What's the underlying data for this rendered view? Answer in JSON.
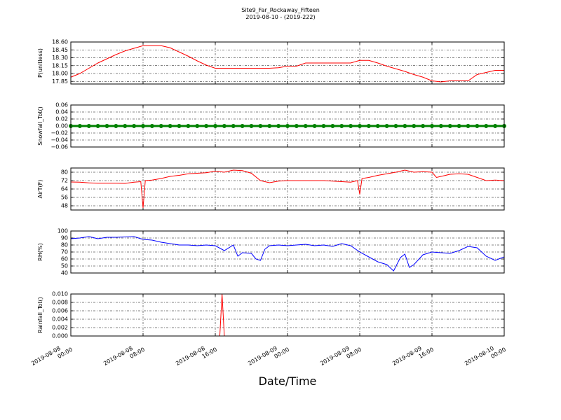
{
  "chart_data": [
    {
      "type": "line",
      "title": "Site9_Far_Rockaway_Fifteen",
      "subtitle": "2019-08-10 - (2019-222)",
      "ylabel": "P(unitless)",
      "ylim": [
        17.8,
        18.6
      ],
      "yticks": [
        17.85,
        {
          "value": 18.0,
          "label": "18.00"
        },
        18.15,
        {
          "value": 18.3,
          "label": "18.30"
        },
        18.45,
        {
          "value": 18.6,
          "label": "18.60"
        }
      ],
      "xlim": [
        "2019-08-08 00:00",
        "2019-08-10 00:00"
      ],
      "xticks": [
        "2019-08-08 00:00",
        "2019-08-08 08:00",
        "2019-08-08 16:00",
        "2019-08-09 00:00",
        "2019-08-09 08:00",
        "2019-08-09 16:00",
        "2019-08-10 00:00"
      ],
      "grid": true,
      "x": [
        "2019-08-08 00:00",
        "2019-08-08 01:00",
        "2019-08-08 02:00",
        "2019-08-08 03:00",
        "2019-08-08 04:00",
        "2019-08-08 05:00",
        "2019-08-08 06:00",
        "2019-08-08 07:00",
        "2019-08-08 08:00",
        "2019-08-08 09:00",
        "2019-08-08 10:00",
        "2019-08-08 11:00",
        "2019-08-08 12:00",
        "2019-08-08 13:00",
        "2019-08-08 14:00",
        "2019-08-08 15:00",
        "2019-08-08 16:00",
        "2019-08-08 17:00",
        "2019-08-08 18:00",
        "2019-08-08 19:00",
        "2019-08-08 20:00",
        "2019-08-08 21:00",
        "2019-08-08 22:00",
        "2019-08-08 23:00",
        "2019-08-09 00:00",
        "2019-08-09 01:00",
        "2019-08-09 02:00",
        "2019-08-09 03:00",
        "2019-08-09 04:00",
        "2019-08-09 05:00",
        "2019-08-09 06:00",
        "2019-08-09 07:00",
        "2019-08-09 08:00",
        "2019-08-09 09:00",
        "2019-08-09 10:00",
        "2019-08-09 11:00",
        "2019-08-09 12:00",
        "2019-08-09 13:00",
        "2019-08-09 14:00",
        "2019-08-09 15:00",
        "2019-08-09 16:00",
        "2019-08-09 17:00",
        "2019-08-09 18:00",
        "2019-08-09 19:00",
        "2019-08-09 20:00",
        "2019-08-09 21:00",
        "2019-08-09 22:00",
        "2019-08-09 23:00",
        "2019-08-10 00:00"
      ],
      "series": [
        {
          "color": "#ff0000",
          "values": [
            17.93,
            18.0,
            18.1,
            18.2,
            18.28,
            18.36,
            18.43,
            18.48,
            18.53,
            18.53,
            18.53,
            18.49,
            18.41,
            18.33,
            18.24,
            18.16,
            18.1,
            18.1,
            18.1,
            18.1,
            18.1,
            18.1,
            18.1,
            18.11,
            18.14,
            18.14,
            18.2,
            18.2,
            18.2,
            18.2,
            18.2,
            18.2,
            18.25,
            18.25,
            18.2,
            18.14,
            18.09,
            18.04,
            17.98,
            17.93,
            17.86,
            17.84,
            17.86,
            17.86,
            17.86,
            17.98,
            18.02,
            18.06,
            18.06
          ]
        }
      ]
    },
    {
      "type": "line",
      "ylabel": "Snowfall_Tot()",
      "markers": true,
      "ylim": [
        -0.06,
        0.06
      ],
      "yticks": [
        {
          "value": -0.06,
          "label": "−0.06"
        },
        {
          "value": -0.04,
          "label": "−0.04"
        },
        {
          "value": -0.02,
          "label": "−0.02"
        },
        {
          "value": 0,
          "label": "0.00"
        },
        0.02,
        0.04,
        0.06
      ],
      "xlim": [
        "2019-08-08 00:00",
        "2019-08-10 00:00"
      ],
      "xticks": [
        "2019-08-08 00:00",
        "2019-08-08 08:00",
        "2019-08-08 16:00",
        "2019-08-09 00:00",
        "2019-08-09 08:00",
        "2019-08-09 16:00",
        "2019-08-10 00:00"
      ],
      "grid": true,
      "x": [
        "2019-08-08 00:00",
        "2019-08-08 01:00",
        "2019-08-08 02:00",
        "2019-08-08 03:00",
        "2019-08-08 04:00",
        "2019-08-08 05:00",
        "2019-08-08 06:00",
        "2019-08-08 07:00",
        "2019-08-08 08:00",
        "2019-08-08 09:00",
        "2019-08-08 10:00",
        "2019-08-08 11:00",
        "2019-08-08 12:00",
        "2019-08-08 13:00",
        "2019-08-08 14:00",
        "2019-08-08 15:00",
        "2019-08-08 16:00",
        "2019-08-08 17:00",
        "2019-08-08 18:00",
        "2019-08-08 19:00",
        "2019-08-08 20:00",
        "2019-08-08 21:00",
        "2019-08-08 22:00",
        "2019-08-08 23:00",
        "2019-08-09 00:00",
        "2019-08-09 01:00",
        "2019-08-09 02:00",
        "2019-08-09 03:00",
        "2019-08-09 04:00",
        "2019-08-09 05:00",
        "2019-08-09 06:00",
        "2019-08-09 07:00",
        "2019-08-09 08:00",
        "2019-08-09 09:00",
        "2019-08-09 10:00",
        "2019-08-09 11:00",
        "2019-08-09 12:00",
        "2019-08-09 13:00",
        "2019-08-09 14:00",
        "2019-08-09 15:00",
        "2019-08-09 16:00",
        "2019-08-09 17:00",
        "2019-08-09 18:00",
        "2019-08-09 19:00",
        "2019-08-09 20:00",
        "2019-08-09 21:00",
        "2019-08-09 22:00",
        "2019-08-09 23:00",
        "2019-08-10 00:00"
      ],
      "series": [
        {
          "color": "#008000",
          "values": [
            0,
            0,
            0,
            0,
            0,
            0,
            0,
            0,
            0,
            0,
            0,
            0,
            0,
            0,
            0,
            0,
            0,
            0,
            0,
            0,
            0,
            0,
            0,
            0,
            0,
            0,
            0,
            0,
            0,
            0,
            0,
            0,
            0,
            0,
            0,
            0,
            0,
            0,
            0,
            0,
            0,
            0,
            0,
            0,
            0,
            0,
            0,
            0,
            0
          ]
        }
      ]
    },
    {
      "type": "line",
      "ylabel": "AirT(F)",
      "ylim": [
        44,
        84
      ],
      "yticks": [
        48,
        56,
        64,
        72,
        80
      ],
      "xlim": [
        "2019-08-08 00:00",
        "2019-08-10 00:00"
      ],
      "xticks": [
        "2019-08-08 00:00",
        "2019-08-08 08:00",
        "2019-08-08 16:00",
        "2019-08-09 00:00",
        "2019-08-09 08:00",
        "2019-08-09 16:00",
        "2019-08-10 00:00"
      ],
      "grid": true,
      "x": [
        "2019-08-08 00:00",
        "2019-08-08 01:00",
        "2019-08-08 02:00",
        "2019-08-08 03:00",
        "2019-08-08 04:00",
        "2019-08-08 05:00",
        "2019-08-08 06:00",
        "2019-08-08 07:00",
        "2019-08-08 07:45",
        "2019-08-08 08:00",
        "2019-08-08 08:15",
        "2019-08-08 09:00",
        "2019-08-08 10:00",
        "2019-08-08 11:00",
        "2019-08-08 12:00",
        "2019-08-08 13:00",
        "2019-08-08 14:00",
        "2019-08-08 15:00",
        "2019-08-08 16:00",
        "2019-08-08 17:00",
        "2019-08-08 18:00",
        "2019-08-08 19:00",
        "2019-08-08 20:00",
        "2019-08-08 21:00",
        "2019-08-08 22:00",
        "2019-08-08 23:00",
        "2019-08-09 00:00",
        "2019-08-09 01:00",
        "2019-08-09 02:00",
        "2019-08-09 03:00",
        "2019-08-09 04:00",
        "2019-08-09 05:00",
        "2019-08-09 06:00",
        "2019-08-09 07:00",
        "2019-08-09 07:45",
        "2019-08-09 08:00",
        "2019-08-09 08:15",
        "2019-08-09 09:00",
        "2019-08-09 10:00",
        "2019-08-09 11:00",
        "2019-08-09 12:00",
        "2019-08-09 13:00",
        "2019-08-09 14:00",
        "2019-08-09 15:00",
        "2019-08-09 16:00",
        "2019-08-09 16:30",
        "2019-08-09 17:00",
        "2019-08-09 18:00",
        "2019-08-09 19:00",
        "2019-08-09 20:00",
        "2019-08-09 21:00",
        "2019-08-09 22:00",
        "2019-08-09 23:00",
        "2019-08-10 00:00"
      ],
      "series": [
        {
          "color": "#ff0000",
          "values": [
            70.7,
            70.5,
            69.8,
            69.5,
            69.5,
            69.5,
            69.3,
            70.5,
            71,
            46,
            72,
            72.5,
            74,
            76,
            77,
            78.5,
            79,
            79.5,
            81,
            80,
            82,
            81.5,
            79,
            72,
            70,
            71.5,
            72,
            72,
            72,
            72,
            72,
            71.5,
            71,
            70.5,
            72,
            59,
            74,
            75,
            77,
            78.5,
            80,
            82,
            80,
            80.5,
            80,
            75,
            76,
            78,
            78.5,
            78,
            75,
            72,
            72.5,
            72
          ]
        }
      ]
    },
    {
      "type": "line",
      "ylabel": "RH(%)",
      "ylim": [
        40,
        100
      ],
      "yticks": [
        40,
        50,
        60,
        70,
        80,
        90,
        100
      ],
      "xlim": [
        "2019-08-08 00:00",
        "2019-08-10 00:00"
      ],
      "xticks": [
        "2019-08-08 00:00",
        "2019-08-08 08:00",
        "2019-08-08 16:00",
        "2019-08-09 00:00",
        "2019-08-09 08:00",
        "2019-08-09 16:00",
        "2019-08-10 00:00"
      ],
      "grid": true,
      "x": [
        "2019-08-08 00:00",
        "2019-08-08 01:00",
        "2019-08-08 02:00",
        "2019-08-08 03:00",
        "2019-08-08 04:00",
        "2019-08-08 05:00",
        "2019-08-08 06:00",
        "2019-08-08 07:00",
        "2019-08-08 08:00",
        "2019-08-08 09:00",
        "2019-08-08 10:00",
        "2019-08-08 11:00",
        "2019-08-08 12:00",
        "2019-08-08 13:00",
        "2019-08-08 14:00",
        "2019-08-08 15:00",
        "2019-08-08 16:00",
        "2019-08-08 17:00",
        "2019-08-08 18:00",
        "2019-08-08 18:30",
        "2019-08-08 19:00",
        "2019-08-08 20:00",
        "2019-08-08 20:30",
        "2019-08-08 21:00",
        "2019-08-08 21:30",
        "2019-08-08 22:00",
        "2019-08-08 23:00",
        "2019-08-09 00:00",
        "2019-08-09 01:00",
        "2019-08-09 02:00",
        "2019-08-09 03:00",
        "2019-08-09 04:00",
        "2019-08-09 05:00",
        "2019-08-09 06:00",
        "2019-08-09 07:00",
        "2019-08-09 08:00",
        "2019-08-09 09:00",
        "2019-08-09 10:00",
        "2019-08-09 11:00",
        "2019-08-09 11:45",
        "2019-08-09 12:30",
        "2019-08-09 13:00",
        "2019-08-09 13:30",
        "2019-08-09 14:00",
        "2019-08-09 15:00",
        "2019-08-09 16:00",
        "2019-08-09 17:00",
        "2019-08-09 18:00",
        "2019-08-09 19:00",
        "2019-08-09 20:00",
        "2019-08-09 21:00",
        "2019-08-09 22:00",
        "2019-08-09 23:00",
        "2019-08-10 00:00"
      ],
      "series": [
        {
          "color": "#0000ff",
          "values": [
            89,
            90,
            92,
            89,
            91,
            91,
            91.5,
            92,
            88,
            87,
            84,
            82,
            80,
            80,
            79,
            80,
            79,
            72,
            80,
            64,
            69,
            68,
            60,
            58,
            74,
            79,
            80,
            79,
            80,
            81,
            79,
            80,
            78,
            82,
            79,
            70,
            63,
            56,
            52,
            43,
            62,
            67,
            48,
            52,
            66,
            70,
            69,
            68,
            72,
            78,
            76,
            64,
            58,
            63
          ]
        }
      ]
    },
    {
      "type": "line",
      "ylabel": "Rainfall_Tot()",
      "xlabel": "Date/Time",
      "ylim": [
        0,
        0.01
      ],
      "yticks": [
        {
          "value": 0,
          "label": "0.000"
        },
        {
          "value": 0.002,
          "label": "0.002"
        },
        {
          "value": 0.004,
          "label": "0.004"
        },
        {
          "value": 0.006,
          "label": "0.006"
        },
        {
          "value": 0.008,
          "label": "0.008"
        },
        {
          "value": 0.01,
          "label": "0.010"
        }
      ],
      "xlim": [
        "2019-08-08 00:00",
        "2019-08-10 00:00"
      ],
      "xticks": [
        "2019-08-08 00:00",
        "2019-08-08 08:00",
        "2019-08-08 16:00",
        "2019-08-09 00:00",
        "2019-08-09 08:00",
        "2019-08-09 16:00",
        "2019-08-10 00:00"
      ],
      "grid": true,
      "xtick_labels": true,
      "x": [
        "2019-08-08 00:00",
        "2019-08-08 16:30",
        "2019-08-08 16:45",
        "2019-08-08 17:00",
        "2019-08-10 00:00"
      ],
      "series": [
        {
          "color": "#ff0000",
          "values": [
            0,
            0,
            0.01,
            0,
            0
          ]
        }
      ]
    }
  ]
}
